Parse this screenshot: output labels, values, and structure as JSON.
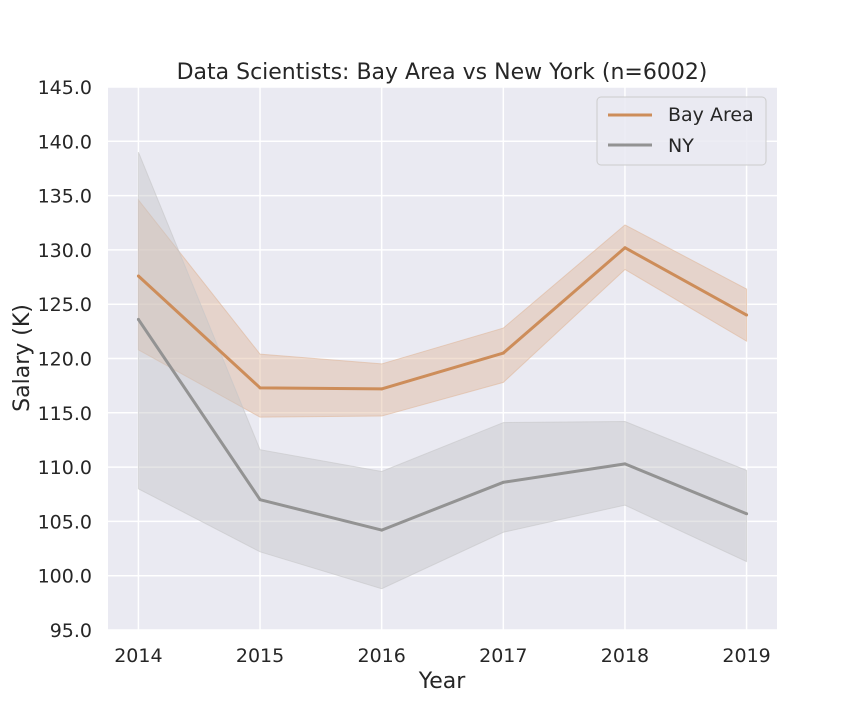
{
  "chart_data": {
    "type": "line",
    "title": "Data Scientists: Bay Area vs New York (n=6002)",
    "xlabel": "Year",
    "ylabel": "Salary (K)",
    "x": [
      2014,
      2015,
      2016,
      2017,
      2018,
      2019
    ],
    "x_ticks": [
      "2014",
      "2015",
      "2016",
      "2017",
      "2018",
      "2019"
    ],
    "xlim": [
      2013.75,
      2019.25
    ],
    "ylim": [
      95.0,
      145.0
    ],
    "y_ticks": [
      "95.0",
      "100.0",
      "105.0",
      "110.0",
      "115.0",
      "120.0",
      "125.0",
      "130.0",
      "135.0",
      "140.0",
      "145.0"
    ],
    "grid": true,
    "legend_position": "top-right",
    "series": [
      {
        "name": "Bay Area",
        "color": "#cd8d5a",
        "band_color": "#dfb79b",
        "values": [
          127.6,
          117.3,
          117.2,
          120.5,
          130.2,
          124.0
        ],
        "ci_low": [
          120.8,
          114.6,
          114.7,
          117.8,
          128.2,
          121.6
        ],
        "ci_high": [
          134.6,
          120.4,
          119.5,
          122.8,
          132.3,
          126.4
        ]
      },
      {
        "name": "NY",
        "color": "#939393",
        "band_color": "#c6c6c8",
        "values": [
          123.6,
          107.0,
          104.2,
          108.6,
          110.3,
          105.7
        ],
        "ci_low": [
          108.0,
          102.2,
          98.8,
          104.0,
          106.5,
          101.3
        ],
        "ci_high": [
          139.0,
          111.6,
          109.6,
          114.1,
          114.2,
          109.7
        ]
      }
    ]
  }
}
